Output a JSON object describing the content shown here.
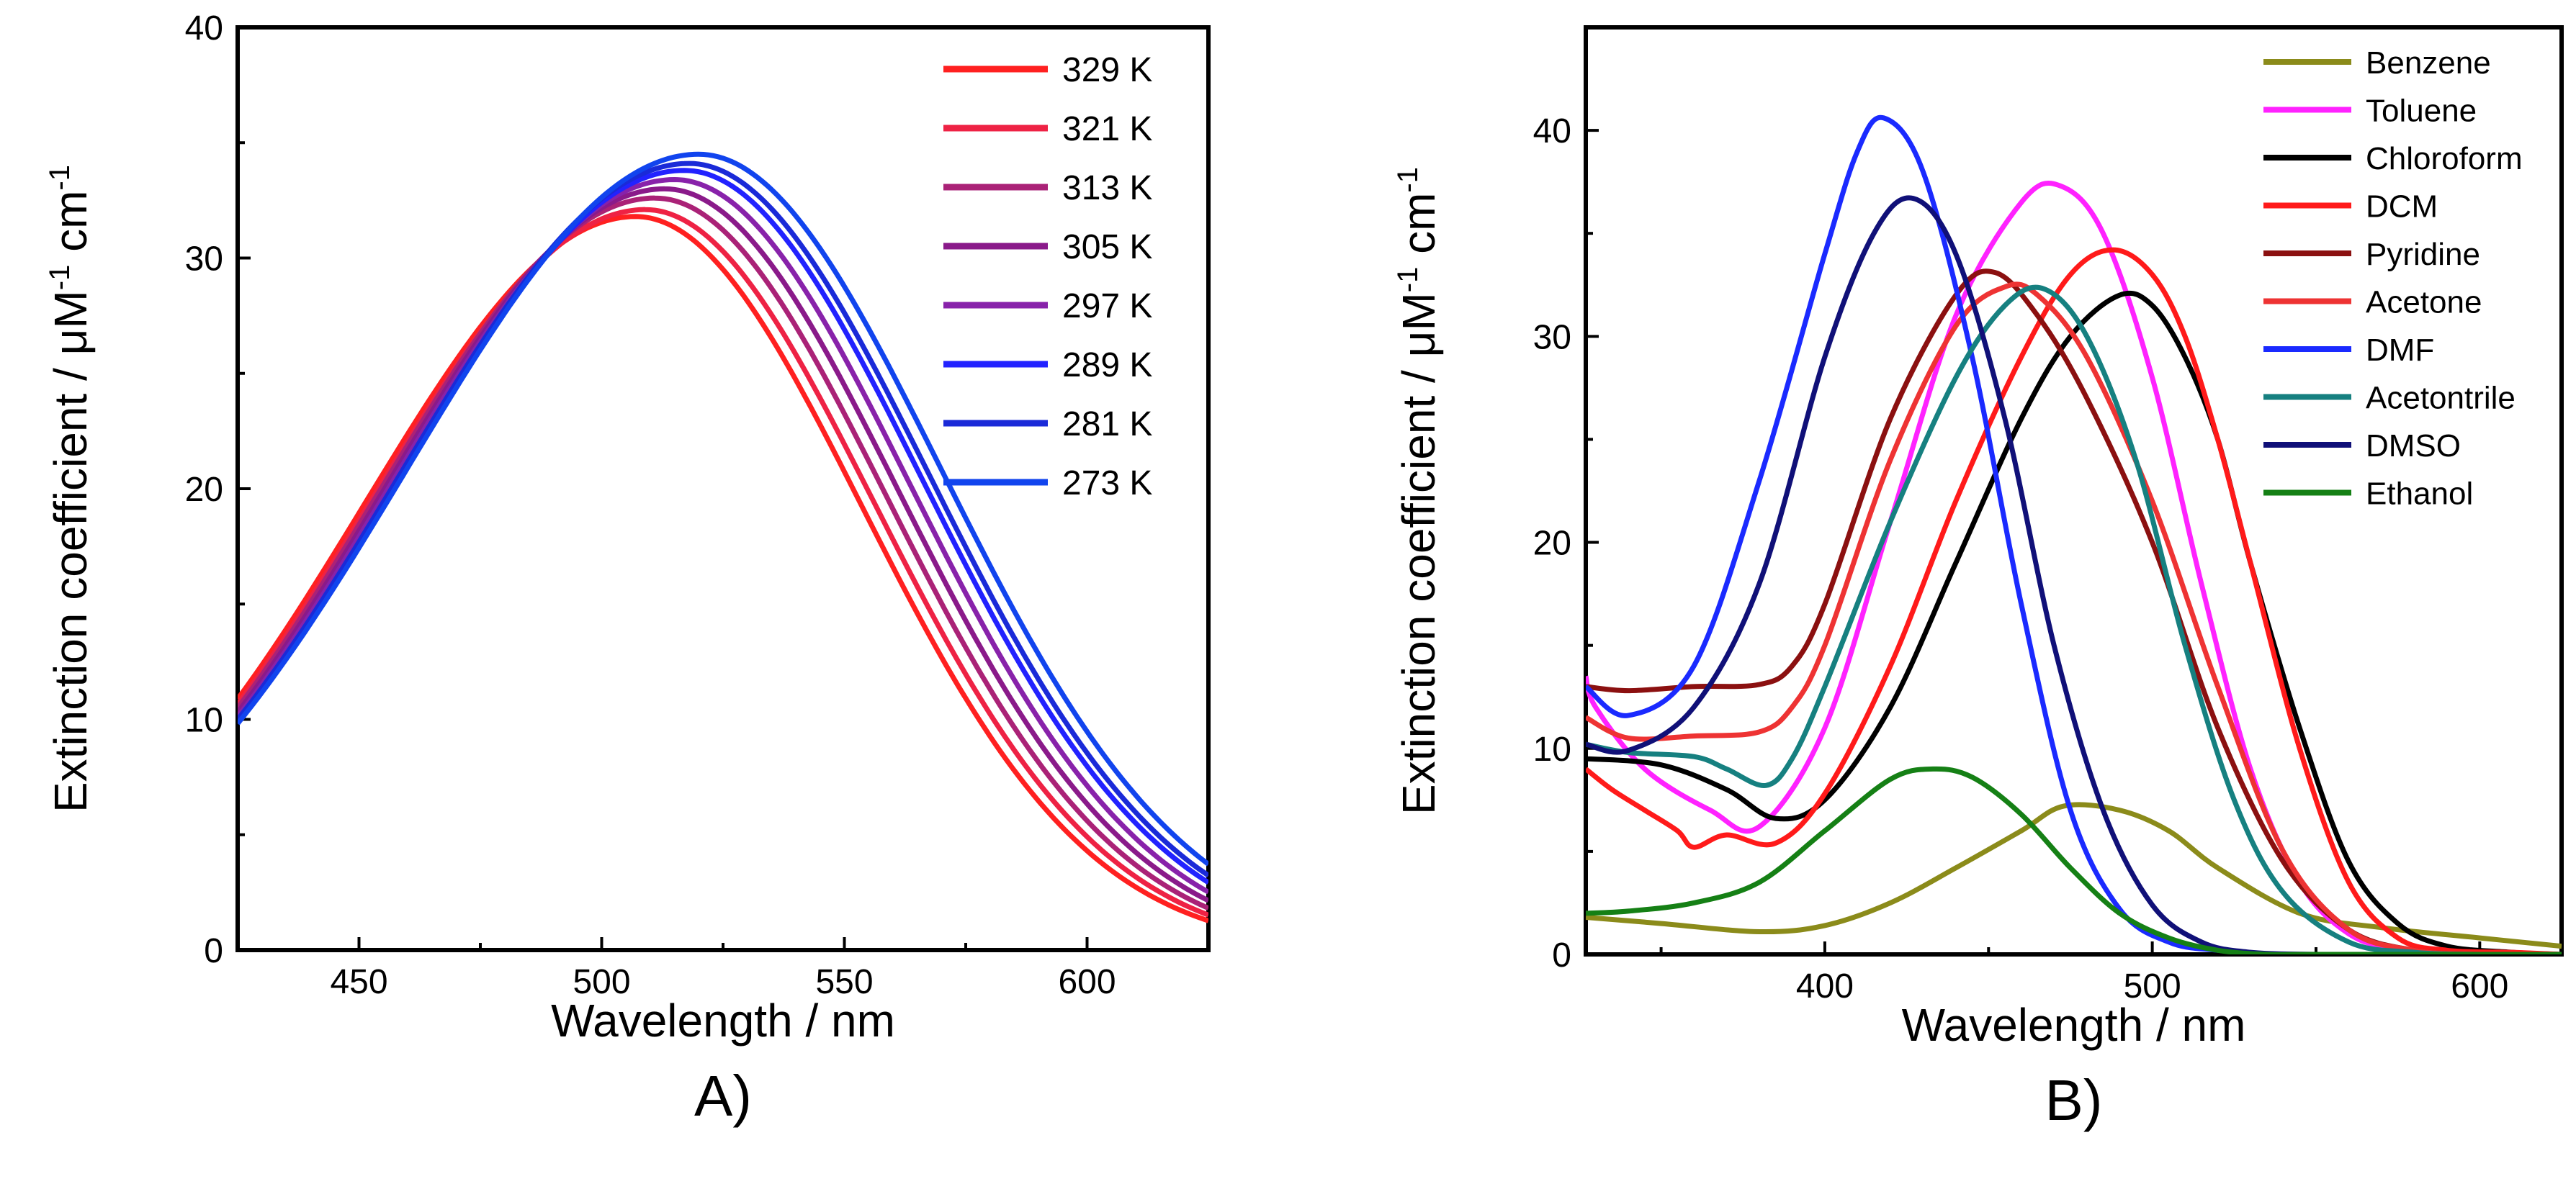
{
  "chart_data": [
    {
      "type": "line",
      "panel_label": "A)",
      "xlabel": "Wavelength / nm",
      "ylabel": "Extinction coefficient / μM",
      "ylabel_sup1": "-1",
      "ylabel_unit2": " cm",
      "ylabel_sup2": "-1",
      "xlim": [
        425,
        625
      ],
      "ylim": [
        0,
        40
      ],
      "xticks": [
        450,
        500,
        550,
        600
      ],
      "yticks": [
        0,
        10,
        20,
        30,
        40
      ],
      "legend_position": "top-right",
      "grid": false,
      "series": [
        {
          "name": "329 K",
          "color": "#ff2020",
          "peak_x": 507,
          "peak_y": 31.8,
          "width": 50,
          "tail": 0.3
        },
        {
          "name": "321 K",
          "color": "#ee2244",
          "peak_x": 509,
          "peak_y": 32.1,
          "width": 50.5,
          "tail": 0.35
        },
        {
          "name": "313 K",
          "color": "#aa2277",
          "peak_x": 511,
          "peak_y": 32.6,
          "width": 51,
          "tail": 0.4
        },
        {
          "name": "305 K",
          "color": "#8a1a8a",
          "peak_x": 513,
          "peak_y": 33.0,
          "width": 51.5,
          "tail": 0.45
        },
        {
          "name": "297 K",
          "color": "#8822aa",
          "peak_x": 515,
          "peak_y": 33.4,
          "width": 52,
          "tail": 0.5
        },
        {
          "name": "289 K",
          "color": "#2222ff",
          "peak_x": 517,
          "peak_y": 33.8,
          "width": 52.5,
          "tail": 0.55
        },
        {
          "name": "281 K",
          "color": "#1a2ad8",
          "peak_x": 518,
          "peak_y": 34.1,
          "width": 53,
          "tail": 0.6
        },
        {
          "name": "273 K",
          "color": "#1144ee",
          "peak_x": 520,
          "peak_y": 34.5,
          "width": 53.5,
          "tail": 0.65
        }
      ]
    },
    {
      "type": "line",
      "panel_label": "B)",
      "xlabel": "Wavelength / nm",
      "ylabel": "Extinction coefficient / μM",
      "ylabel_sup1": "-1",
      "ylabel_unit2": " cm",
      "ylabel_sup2": "-1",
      "xlim": [
        327,
        625
      ],
      "ylim": [
        0,
        45
      ],
      "xticks": [
        400,
        500,
        600
      ],
      "yticks": [
        0,
        10,
        20,
        30,
        40
      ],
      "legend_position": "top-right",
      "grid": false,
      "series": [
        {
          "name": "Benzene",
          "color": "#8b8b1a",
          "x": [
            327,
            350,
            380,
            400,
            420,
            440,
            460,
            473,
            490,
            505,
            520,
            545,
            570,
            600,
            625
          ],
          "y": [
            1.8,
            1.5,
            1.1,
            1.4,
            2.5,
            4.2,
            6.0,
            7.2,
            7.0,
            6.0,
            4.2,
            2.0,
            1.3,
            0.8,
            0.4
          ]
        },
        {
          "name": "Toluene",
          "color": "#ff22ff",
          "x": [
            327,
            330,
            345,
            365,
            380,
            400,
            420,
            440,
            460,
            472,
            485,
            500,
            515,
            530,
            545,
            560,
            575,
            600,
            625
          ],
          "y": [
            13.5,
            12,
            9,
            7,
            6.2,
            11,
            21,
            31,
            36.5,
            37.3,
            35,
            28,
            18,
            9,
            3.5,
            1,
            0.3,
            0.1,
            0
          ]
        },
        {
          "name": "Chloroform",
          "color": "#000000",
          "x": [
            327,
            350,
            370,
            385,
            400,
            420,
            440,
            460,
            475,
            490,
            500,
            510,
            520,
            530,
            545,
            560,
            575,
            590,
            610,
            625
          ],
          "y": [
            9.5,
            9.2,
            8,
            6.6,
            7.5,
            12,
            19,
            26,
            30,
            32,
            31.5,
            29,
            25,
            19,
            11,
            4.5,
            1.5,
            0.4,
            0.1,
            0
          ]
        },
        {
          "name": "DCM",
          "color": "#ff1a1a",
          "x": [
            327,
            335,
            345,
            355,
            360,
            370,
            385,
            400,
            420,
            440,
            460,
            475,
            488,
            500,
            510,
            520,
            530,
            545,
            560,
            575,
            590,
            610,
            625
          ],
          "y": [
            9,
            8,
            7,
            6,
            5.2,
            5.8,
            5.4,
            7.8,
            14,
            22,
            29,
            33,
            34.2,
            33,
            30,
            25,
            19,
            10,
            3.5,
            0.8,
            0.2,
            0.1,
            0
          ]
        },
        {
          "name": "Pyridine",
          "color": "#8b1010",
          "x": [
            327,
            340,
            360,
            380,
            390,
            400,
            420,
            440,
            452,
            465,
            480,
            500,
            520,
            540,
            560,
            580,
            600,
            625
          ],
          "y": [
            13,
            12.8,
            13,
            13.1,
            14,
            17,
            26,
            32,
            33.1,
            31,
            27,
            20,
            11,
            4.5,
            1.2,
            0.2,
            0,
            0
          ]
        },
        {
          "name": "Acetone",
          "color": "#ee3333",
          "x": [
            327,
            340,
            360,
            380,
            390,
            400,
            420,
            440,
            455,
            465,
            480,
            500,
            520,
            540,
            560,
            580,
            600,
            625
          ],
          "y": [
            11.5,
            10.5,
            10.6,
            10.8,
            12,
            15,
            24,
            30.5,
            32.4,
            32,
            29,
            22,
            13,
            5,
            1.2,
            0.2,
            0,
            0
          ]
        },
        {
          "name": "DMF",
          "color": "#1a2aff",
          "x": [
            327,
            340,
            360,
            380,
            400,
            410,
            418,
            430,
            445,
            460,
            475,
            490,
            505,
            520,
            540,
            560,
            625
          ],
          "y": [
            13,
            11.6,
            14,
            23,
            34,
            39,
            40.6,
            38,
            29,
            17,
            7,
            2.2,
            0.6,
            0.2,
            0,
            0,
            0
          ]
        },
        {
          "name": "Acetontrile",
          "color": "#168080",
          "x": [
            327,
            340,
            360,
            370,
            382,
            390,
            400,
            420,
            440,
            455,
            467,
            480,
            495,
            510,
            525,
            540,
            560,
            580,
            600,
            625
          ],
          "y": [
            10.2,
            9.8,
            9.6,
            9,
            8.2,
            9.5,
            13,
            21,
            28,
            31.5,
            32.3,
            30,
            24,
            15,
            7.5,
            3,
            0.6,
            0.1,
            0,
            0
          ]
        },
        {
          "name": "DMSO",
          "color": "#101078",
          "x": [
            327,
            340,
            360,
            380,
            400,
            415,
            427,
            440,
            455,
            470,
            485,
            500,
            515,
            530,
            550,
            570,
            625
          ],
          "y": [
            10.2,
            9.9,
            12,
            18,
            29,
            35,
            36.7,
            34,
            26,
            15,
            7,
            2.4,
            0.6,
            0.1,
            0,
            0,
            0
          ]
        },
        {
          "name": "Ethanol",
          "color": "#158015",
          "x": [
            327,
            340,
            360,
            380,
            400,
            420,
            433,
            445,
            460,
            475,
            490,
            505,
            520,
            535,
            550,
            625
          ],
          "y": [
            2,
            2.1,
            2.5,
            3.5,
            6,
            8.5,
            9.0,
            8.6,
            6.8,
            4.2,
            2,
            0.8,
            0.2,
            0,
            0,
            0
          ]
        }
      ]
    }
  ]
}
